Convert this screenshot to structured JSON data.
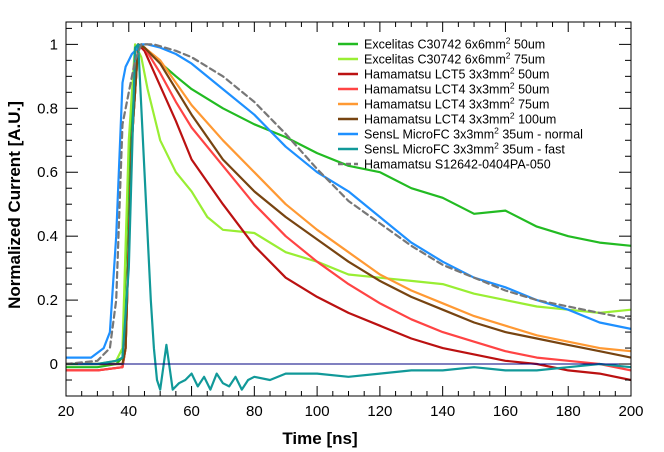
{
  "chart_data": {
    "type": "line",
    "xlabel": "Time [ns]",
    "ylabel": "Normalized Current [A.U.]",
    "xlim": [
      20,
      200
    ],
    "ylim": [
      -0.1,
      1.07
    ],
    "xticks": [
      20,
      40,
      60,
      80,
      100,
      120,
      140,
      160,
      180,
      200
    ],
    "xtick_labels": [
      "20",
      "40",
      "60",
      "80",
      "100",
      "120",
      "140",
      "160",
      "180",
      "200"
    ],
    "yticks": [
      0,
      0.2,
      0.4,
      0.6,
      0.8,
      1
    ],
    "ytick_labels": [
      "0",
      "0.2",
      "0.4",
      "0.6",
      "0.8",
      "1"
    ],
    "zero_line": {
      "y": 0,
      "color": "#000080"
    },
    "legend_position": "top-right",
    "series": [
      {
        "name": "Excelitas C30742 6x6mm² 50um",
        "legend": "Excelitas C30742 6x6mm",
        "legend_suffix": " 50um",
        "color": "#22bb22",
        "dashed": false,
        "x": [
          20,
          30,
          36,
          38,
          40,
          42,
          44,
          48,
          55,
          60,
          70,
          80,
          90,
          100,
          110,
          120,
          130,
          140,
          150,
          160,
          170,
          180,
          190,
          200
        ],
        "y": [
          -0.01,
          -0.01,
          0.0,
          0.02,
          0.6,
          0.99,
          1.0,
          0.96,
          0.9,
          0.86,
          0.8,
          0.75,
          0.71,
          0.66,
          0.62,
          0.6,
          0.55,
          0.52,
          0.47,
          0.48,
          0.43,
          0.4,
          0.38,
          0.37
        ]
      },
      {
        "name": "Excelitas C30742 6x6mm² 75um",
        "legend": "Excelitas C30742 6x6mm",
        "legend_suffix": " 75um",
        "color": "#99ee33",
        "dashed": false,
        "x": [
          20,
          30,
          36,
          38,
          40,
          42,
          44,
          46,
          50,
          55,
          60,
          65,
          70,
          80,
          90,
          100,
          110,
          120,
          130,
          140,
          150,
          160,
          170,
          180,
          190,
          200
        ],
        "y": [
          0.0,
          0.0,
          0.01,
          0.05,
          0.7,
          1.0,
          0.96,
          0.86,
          0.7,
          0.6,
          0.54,
          0.46,
          0.42,
          0.41,
          0.35,
          0.32,
          0.28,
          0.27,
          0.26,
          0.25,
          0.22,
          0.2,
          0.18,
          0.17,
          0.16,
          0.17
        ]
      },
      {
        "name": "Hamamatsu LCT5 3x3mm² 50um",
        "legend": "Hamamatsu LCT5 3x3mm",
        "legend_suffix": " 50um",
        "color": "#bb1111",
        "dashed": false,
        "x": [
          20,
          30,
          38,
          39,
          41,
          43,
          45,
          50,
          55,
          60,
          70,
          80,
          90,
          100,
          110,
          120,
          130,
          140,
          150,
          160,
          170,
          180,
          190,
          200
        ],
        "y": [
          -0.02,
          -0.02,
          -0.01,
          0.05,
          0.7,
          1.0,
          0.98,
          0.87,
          0.76,
          0.64,
          0.5,
          0.37,
          0.27,
          0.21,
          0.16,
          0.12,
          0.08,
          0.05,
          0.03,
          0.01,
          0.0,
          -0.02,
          -0.03,
          -0.05
        ]
      },
      {
        "name": "Hamamatsu LCT4 3x3mm² 50um",
        "legend": "Hamamatsu LCT4 3x3mm",
        "legend_suffix": " 50um",
        "color": "#ff4444",
        "dashed": false,
        "x": [
          20,
          30,
          38,
          39,
          41,
          43,
          45,
          50,
          55,
          60,
          70,
          80,
          90,
          100,
          110,
          120,
          130,
          140,
          150,
          160,
          170,
          180,
          190,
          200
        ],
        "y": [
          -0.02,
          -0.02,
          -0.01,
          0.05,
          0.7,
          1.0,
          0.99,
          0.91,
          0.82,
          0.74,
          0.62,
          0.5,
          0.4,
          0.32,
          0.25,
          0.19,
          0.14,
          0.1,
          0.07,
          0.04,
          0.02,
          0.01,
          0.0,
          -0.02
        ]
      },
      {
        "name": "Hamamatsu LCT4 3x3mm² 75um",
        "legend": "Hamamatsu LCT4 3x3mm",
        "legend_suffix": " 75um",
        "color": "#ff9933",
        "dashed": false,
        "x": [
          20,
          30,
          38,
          39,
          41,
          43,
          45,
          50,
          55,
          60,
          70,
          80,
          90,
          100,
          110,
          120,
          130,
          140,
          150,
          160,
          170,
          180,
          190,
          200
        ],
        "y": [
          0.0,
          0.0,
          0.0,
          0.05,
          0.7,
          1.0,
          0.99,
          0.95,
          0.88,
          0.81,
          0.7,
          0.6,
          0.5,
          0.42,
          0.35,
          0.28,
          0.23,
          0.19,
          0.15,
          0.12,
          0.09,
          0.07,
          0.05,
          0.04
        ]
      },
      {
        "name": "Hamamatsu LCT4 3x3mm² 100um",
        "legend": "Hamamatsu LCT4 3x3mm",
        "legend_suffix": " 100um",
        "color": "#774411",
        "dashed": false,
        "x": [
          20,
          30,
          38,
          39,
          41,
          43,
          45,
          50,
          55,
          60,
          70,
          80,
          90,
          100,
          110,
          120,
          130,
          140,
          150,
          160,
          170,
          180,
          190,
          200
        ],
        "y": [
          0.0,
          0.0,
          0.0,
          0.05,
          0.7,
          1.0,
          0.99,
          0.94,
          0.86,
          0.78,
          0.64,
          0.54,
          0.46,
          0.39,
          0.32,
          0.26,
          0.21,
          0.17,
          0.13,
          0.1,
          0.08,
          0.06,
          0.04,
          0.02
        ]
      },
      {
        "name": "SensL MicroFC 3x3mm² 35um - normal",
        "legend": "SensL MicroFC 3x3mm",
        "legend_suffix": " 35um - normal",
        "color": "#1e90ff",
        "dashed": false,
        "x": [
          20,
          28,
          32,
          34,
          36,
          38,
          39,
          40,
          41,
          42,
          44,
          46,
          50,
          55,
          60,
          70,
          80,
          90,
          100,
          110,
          120,
          130,
          140,
          150,
          160,
          170,
          180,
          190,
          200
        ],
        "y": [
          0.02,
          0.02,
          0.05,
          0.1,
          0.4,
          0.88,
          0.93,
          0.95,
          0.97,
          0.98,
          1.0,
          1.0,
          0.99,
          0.97,
          0.94,
          0.86,
          0.78,
          0.68,
          0.6,
          0.54,
          0.46,
          0.38,
          0.32,
          0.27,
          0.24,
          0.2,
          0.17,
          0.13,
          0.11
        ]
      },
      {
        "name": "SensL MicroFC 3x3mm² 35um - fast",
        "legend": "SensL MicroFC 3x3mm",
        "legend_suffix": " 35um - fast",
        "color": "#119999",
        "dashed": false,
        "x": [
          20,
          30,
          36,
          38,
          40,
          42,
          43,
          45,
          47,
          48,
          49,
          50,
          52,
          54,
          56,
          58,
          60,
          62,
          64,
          66,
          68,
          70,
          72,
          74,
          76,
          78,
          80,
          85,
          90,
          100,
          110,
          120,
          130,
          140,
          150,
          160,
          170,
          180,
          190,
          200
        ],
        "y": [
          0.0,
          0.0,
          0.01,
          0.02,
          0.3,
          0.99,
          1.0,
          0.6,
          0.2,
          0.05,
          -0.05,
          -0.08,
          0.06,
          -0.08,
          -0.06,
          -0.05,
          -0.03,
          -0.07,
          -0.04,
          -0.08,
          -0.03,
          -0.06,
          -0.07,
          -0.04,
          -0.08,
          -0.05,
          -0.04,
          -0.05,
          -0.03,
          -0.03,
          -0.04,
          -0.03,
          -0.02,
          -0.02,
          -0.01,
          -0.02,
          -0.02,
          -0.01,
          0.0,
          -0.01
        ]
      },
      {
        "name": "Hamamatsu S12642-0404PA-050",
        "legend": "Hamamatsu S12642-0404PA-050",
        "legend_suffix": "",
        "color": "#777777",
        "dashed": true,
        "x": [
          20,
          30,
          34,
          36,
          38,
          40,
          42,
          44,
          48,
          55,
          60,
          70,
          80,
          90,
          100,
          110,
          120,
          130,
          140,
          150,
          160,
          170,
          180,
          190,
          200
        ],
        "y": [
          0.0,
          0.01,
          0.05,
          0.2,
          0.75,
          0.85,
          0.95,
          1.0,
          1.0,
          0.98,
          0.96,
          0.9,
          0.82,
          0.72,
          0.61,
          0.51,
          0.44,
          0.37,
          0.31,
          0.27,
          0.23,
          0.2,
          0.18,
          0.16,
          0.14
        ]
      }
    ]
  }
}
